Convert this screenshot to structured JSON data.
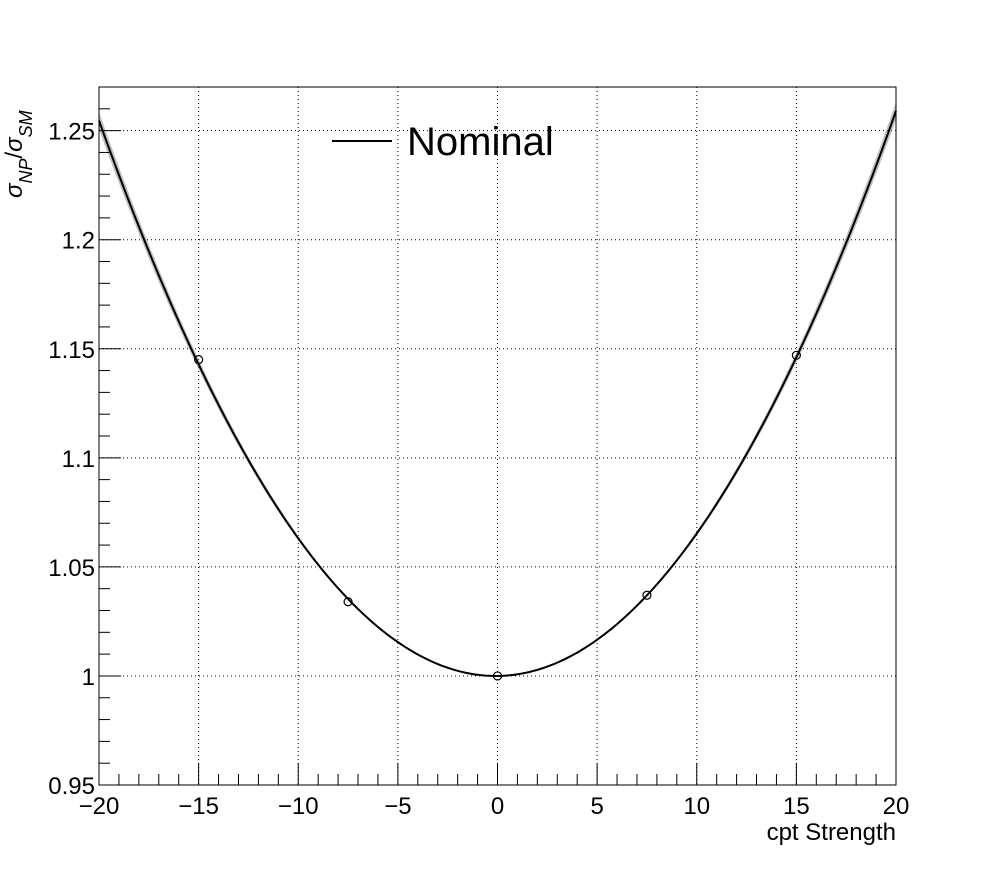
{
  "chart_data": {
    "type": "line",
    "xlabel": "cpt Strength",
    "ylabel": {
      "main": "σ",
      "sub1": "NP",
      "slash": "/",
      "main2": "σ",
      "sub2": "SM"
    },
    "xlim": [
      -20,
      20
    ],
    "ylim": [
      0.95,
      1.27
    ],
    "x_ticks": [
      -20,
      -15,
      -10,
      -5,
      0,
      5,
      10,
      15,
      20
    ],
    "x_tick_labels": [
      "−20",
      "−15",
      "−10",
      "−5",
      "0",
      "5",
      "10",
      "15",
      "20"
    ],
    "y_ticks": [
      0.95,
      1.0,
      1.05,
      1.1,
      1.15,
      1.2,
      1.25
    ],
    "y_tick_labels": [
      "0.95",
      "1",
      "1.05",
      "1.1",
      "1.15",
      "1.2",
      "1.25"
    ],
    "grid": true,
    "legend": {
      "placement": "top-center",
      "entries": [
        "Nominal"
      ]
    },
    "series": [
      {
        "name": "Nominal",
        "kind": "quadratic-fit",
        "coefficients": {
          "a": 0.000642,
          "b": 0.00011,
          "c": 1.0
        },
        "band_halfwidth_at_edge": 0.004,
        "color": "#000000"
      }
    ],
    "points": [
      {
        "x": -15,
        "y": 1.145
      },
      {
        "x": -7.5,
        "y": 1.034
      },
      {
        "x": 0,
        "y": 1.0
      },
      {
        "x": 7.5,
        "y": 1.037
      },
      {
        "x": 15,
        "y": 1.147
      }
    ]
  }
}
